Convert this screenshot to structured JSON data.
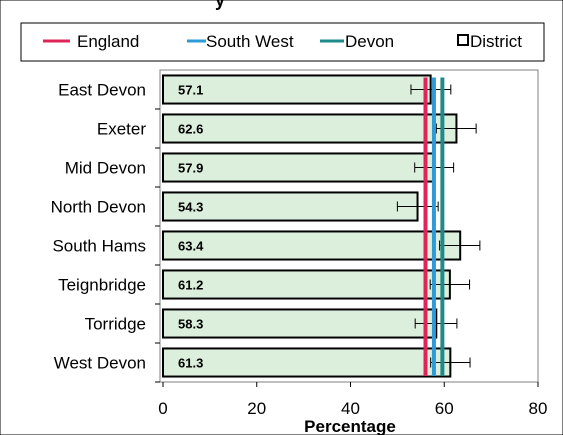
{
  "chart_data": {
    "type": "bar",
    "orientation": "horizontal",
    "title": "",
    "xlabel": "Percentage",
    "ylabel": "",
    "xlim": [
      0,
      80
    ],
    "x_ticks": [
      "0",
      "20",
      "40",
      "60",
      "80"
    ],
    "categories": [
      "East Devon",
      "Exeter",
      "Mid Devon",
      "North Devon",
      "South Hams",
      "Teignbridge",
      "Torridge",
      "West Devon"
    ],
    "series": [
      {
        "name": "District",
        "values": [
          57.1,
          62.6,
          57.9,
          54.3,
          63.4,
          61.2,
          58.3,
          61.3
        ],
        "labels": [
          "57.1",
          "62.6",
          "57.9",
          "54.3",
          "63.4",
          "61.2",
          "58.3",
          "61.3"
        ],
        "error_low": [
          52.9,
          58.3,
          53.7,
          50.0,
          59.0,
          57.0,
          53.8,
          57.1
        ],
        "error_high": [
          61.4,
          66.8,
          62.0,
          58.7,
          67.6,
          65.4,
          62.7,
          65.5
        ],
        "color": "#dcefdc"
      }
    ],
    "reference_lines": [
      {
        "name": "England",
        "value": 56.0,
        "color": "#e0245a"
      },
      {
        "name": "South West",
        "value": 57.8,
        "color": "#2e9bd6"
      },
      {
        "name": "Devon",
        "value": 59.6,
        "color": "#1f8a8a"
      }
    ],
    "legend": [
      "England",
      "South West",
      "Devon",
      "District"
    ],
    "legend_position": "top",
    "grid": false,
    "plot_background": "#ffffff",
    "title_fragment": "y"
  }
}
